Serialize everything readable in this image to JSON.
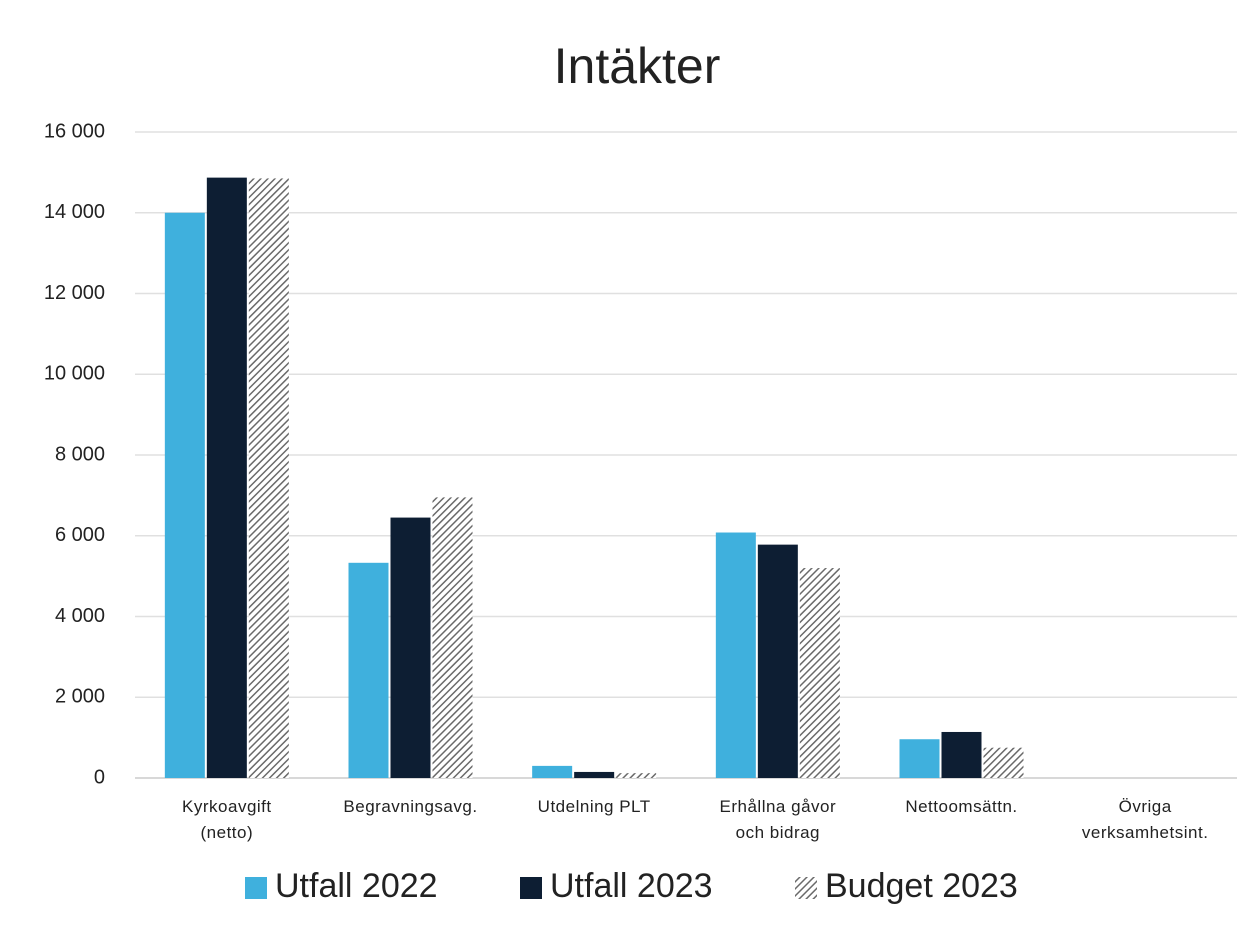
{
  "chart_data": {
    "type": "bar",
    "title": "Intäkter",
    "categories": [
      "Kyrkoavgift\n(netto)",
      "Begravningsavg.",
      "Utdelning PLT",
      "Erhållna gåvor\noch bidrag",
      "Nettoomsättn.",
      "Övriga\nverksamhetsint."
    ],
    "series": [
      {
        "name": "Utfall 2022",
        "color": "#3fb0dd",
        "values": [
          14000,
          5330,
          300,
          6080,
          960,
          0
        ]
      },
      {
        "name": "Utfall 2023",
        "color": "#0d1e33",
        "values": [
          14870,
          6450,
          150,
          5780,
          1140,
          0
        ]
      },
      {
        "name": "Budget 2023",
        "color": "#6a6a6a",
        "pattern": "hatch",
        "values": [
          14850,
          6950,
          120,
          5200,
          750,
          0
        ]
      }
    ],
    "ylim": [
      0,
      16000
    ],
    "yticks": [
      0,
      {
        "value": 2000,
        "label": "2 000"
      },
      {
        "value": 4000,
        "label": "4 000"
      },
      {
        "value": 6000,
        "label": "6 000"
      },
      {
        "value": 8000,
        "label": "8 000"
      },
      {
        "value": 10000,
        "label": "10 000"
      },
      {
        "value": 12000,
        "label": "12 000"
      },
      {
        "value": 14000,
        "label": "14 000"
      },
      {
        "value": 16000,
        "label": "16 000"
      }
    ],
    "grid": true,
    "legend": "bottom"
  }
}
